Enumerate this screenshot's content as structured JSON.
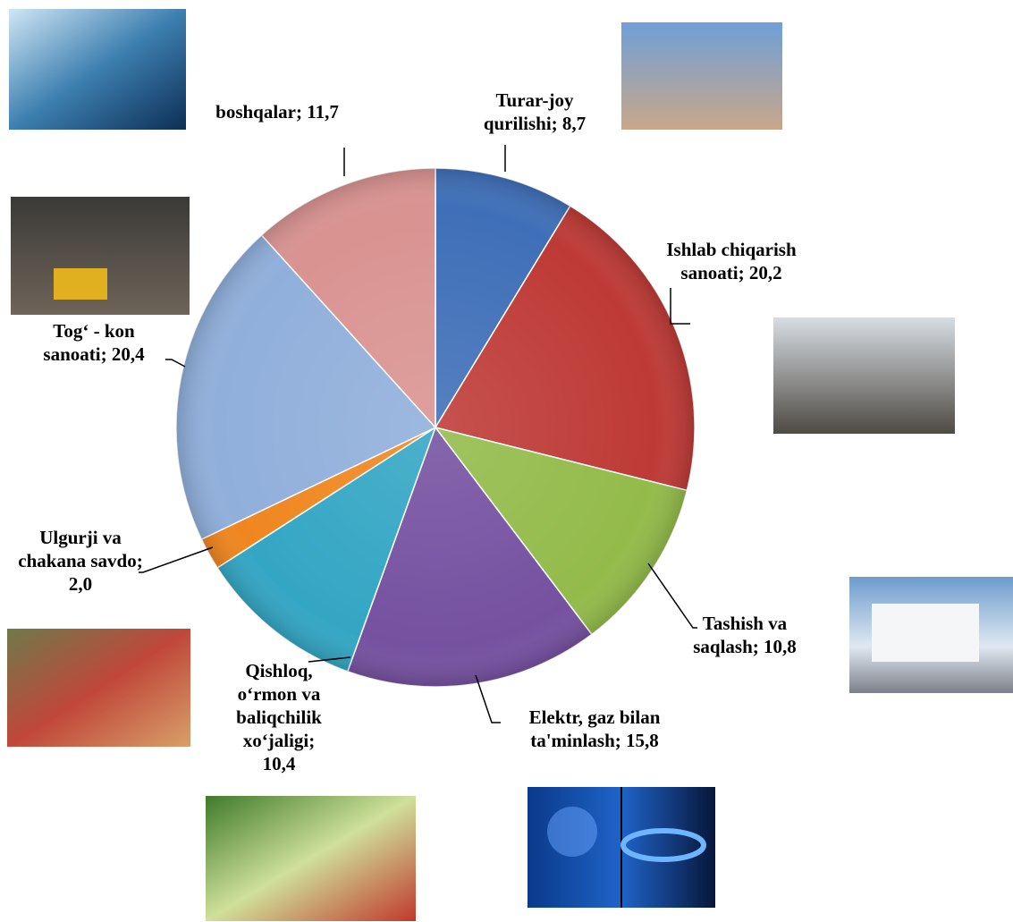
{
  "chart_data": {
    "type": "pie",
    "values": [
      8.7,
      20.2,
      10.8,
      15.8,
      10.4,
      2.0,
      20.4,
      11.7
    ],
    "value_labels": [
      "Turar-joy qurilishi; 8,7",
      "Ishlab chiqarish sanoati; 20,2",
      "Tashish va saqlash; 10,8",
      "Elektr, gaz bilan ta'minlash; 15,8",
      "Qishloq, o‘rmon va baliqchilik xo‘jaligi; 10,4",
      "Ulgurji va chakana savdo; 2,0",
      "Tog‘ - kon sanoati; 20,4",
      "boshqalar; 11,7"
    ],
    "colors": [
      "#3f6fb8",
      "#be3a36",
      "#93bb4a",
      "#7551a0",
      "#33a6c4",
      "#f0861f",
      "#90afdb",
      "#d99391"
    ]
  }
}
